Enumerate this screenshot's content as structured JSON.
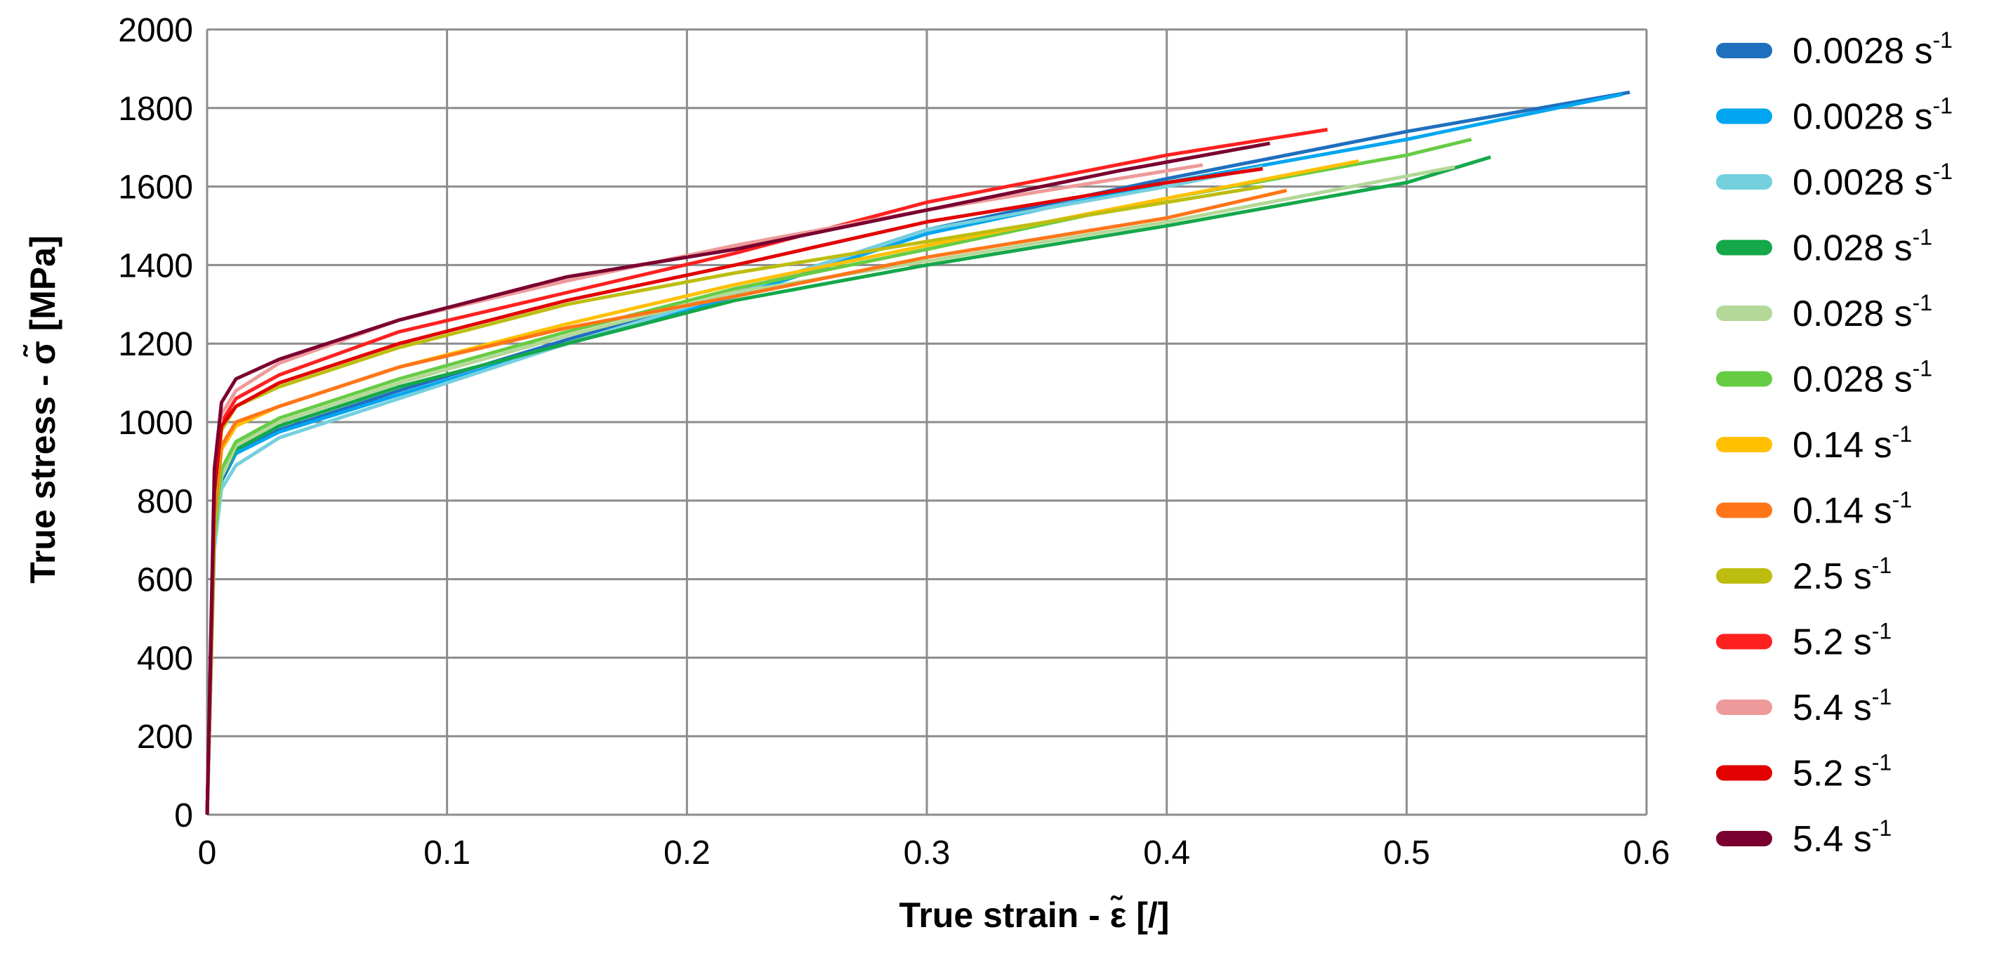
{
  "chart_data": {
    "type": "line",
    "xlabel": "True strain - ε̃ [/]",
    "ylabel": "True stress - σ̃ [MPa]",
    "xlim": [
      0,
      0.6
    ],
    "ylim": [
      0,
      2000
    ],
    "x_ticks": [
      "0",
      "0.1",
      "0.2",
      "0.3",
      "0.4",
      "0.5",
      "0.6"
    ],
    "y_ticks": [
      "0",
      "200",
      "400",
      "600",
      "800",
      "1000",
      "1200",
      "1400",
      "1600",
      "1800",
      "2000"
    ],
    "grid": true,
    "legend_position": "right",
    "legend_unit": "s",
    "legend_exponent": "-1",
    "series": [
      {
        "name": "0.0028",
        "color": "#1f6fbf",
        "points": [
          [
            0,
            0
          ],
          [
            0.003,
            700
          ],
          [
            0.006,
            850
          ],
          [
            0.012,
            920
          ],
          [
            0.03,
            980
          ],
          [
            0.08,
            1080
          ],
          [
            0.15,
            1210
          ],
          [
            0.22,
            1330
          ],
          [
            0.3,
            1490
          ],
          [
            0.4,
            1620
          ],
          [
            0.5,
            1740
          ],
          [
            0.593,
            1840
          ]
        ]
      },
      {
        "name": "0.0028",
        "color": "#00a6ef",
        "points": [
          [
            0,
            0
          ],
          [
            0.003,
            700
          ],
          [
            0.006,
            860
          ],
          [
            0.012,
            920
          ],
          [
            0.03,
            975
          ],
          [
            0.08,
            1070
          ],
          [
            0.15,
            1200
          ],
          [
            0.22,
            1320
          ],
          [
            0.3,
            1480
          ],
          [
            0.4,
            1610
          ],
          [
            0.5,
            1720
          ],
          [
            0.59,
            1835
          ]
        ]
      },
      {
        "name": "0.0028",
        "color": "#75d0de",
        "points": [
          [
            0,
            0
          ],
          [
            0.003,
            680
          ],
          [
            0.006,
            830
          ],
          [
            0.012,
            890
          ],
          [
            0.03,
            960
          ],
          [
            0.08,
            1060
          ],
          [
            0.15,
            1200
          ],
          [
            0.22,
            1330
          ],
          [
            0.3,
            1490
          ],
          [
            0.4,
            1600
          ],
          [
            0.44,
            1650
          ]
        ]
      },
      {
        "name": "0.028",
        "color": "#14a84a",
        "points": [
          [
            0,
            0
          ],
          [
            0.003,
            700
          ],
          [
            0.006,
            860
          ],
          [
            0.012,
            930
          ],
          [
            0.03,
            990
          ],
          [
            0.08,
            1090
          ],
          [
            0.15,
            1200
          ],
          [
            0.22,
            1310
          ],
          [
            0.3,
            1400
          ],
          [
            0.4,
            1500
          ],
          [
            0.5,
            1610
          ],
          [
            0.535,
            1675
          ]
        ]
      },
      {
        "name": "0.028",
        "color": "#b3d898",
        "points": [
          [
            0,
            0
          ],
          [
            0.003,
            700
          ],
          [
            0.006,
            860
          ],
          [
            0.012,
            940
          ],
          [
            0.03,
            1000
          ],
          [
            0.08,
            1100
          ],
          [
            0.15,
            1220
          ],
          [
            0.22,
            1330
          ],
          [
            0.3,
            1410
          ],
          [
            0.4,
            1510
          ],
          [
            0.52,
            1650
          ]
        ]
      },
      {
        "name": "0.028",
        "color": "#66cc44",
        "points": [
          [
            0,
            0
          ],
          [
            0.003,
            710
          ],
          [
            0.006,
            880
          ],
          [
            0.012,
            950
          ],
          [
            0.03,
            1010
          ],
          [
            0.08,
            1110
          ],
          [
            0.15,
            1230
          ],
          [
            0.22,
            1340
          ],
          [
            0.3,
            1440
          ],
          [
            0.4,
            1570
          ],
          [
            0.5,
            1680
          ],
          [
            0.527,
            1720
          ]
        ]
      },
      {
        "name": "0.14",
        "color": "#ffc000",
        "points": [
          [
            0,
            0
          ],
          [
            0.003,
            750
          ],
          [
            0.006,
            930
          ],
          [
            0.012,
            990
          ],
          [
            0.03,
            1040
          ],
          [
            0.08,
            1140
          ],
          [
            0.15,
            1250
          ],
          [
            0.22,
            1350
          ],
          [
            0.3,
            1450
          ],
          [
            0.4,
            1570
          ],
          [
            0.48,
            1665
          ]
        ]
      },
      {
        "name": "0.14",
        "color": "#ff7518",
        "points": [
          [
            0,
            0
          ],
          [
            0.003,
            760
          ],
          [
            0.006,
            940
          ],
          [
            0.012,
            1000
          ],
          [
            0.03,
            1040
          ],
          [
            0.08,
            1140
          ],
          [
            0.15,
            1240
          ],
          [
            0.22,
            1320
          ],
          [
            0.3,
            1420
          ],
          [
            0.4,
            1520
          ],
          [
            0.45,
            1590
          ]
        ]
      },
      {
        "name": "2.5",
        "color": "#bdbd10",
        "points": [
          [
            0,
            0
          ],
          [
            0.003,
            800
          ],
          [
            0.006,
            980
          ],
          [
            0.012,
            1040
          ],
          [
            0.03,
            1090
          ],
          [
            0.08,
            1190
          ],
          [
            0.15,
            1300
          ],
          [
            0.22,
            1380
          ],
          [
            0.3,
            1460
          ],
          [
            0.4,
            1560
          ],
          [
            0.44,
            1600
          ]
        ]
      },
      {
        "name": "5.2",
        "color": "#ff2020",
        "points": [
          [
            0,
            0
          ],
          [
            0.003,
            850
          ],
          [
            0.006,
            1000
          ],
          [
            0.012,
            1060
          ],
          [
            0.03,
            1120
          ],
          [
            0.08,
            1230
          ],
          [
            0.15,
            1330
          ],
          [
            0.22,
            1430
          ],
          [
            0.3,
            1560
          ],
          [
            0.4,
            1680
          ],
          [
            0.467,
            1745
          ]
        ]
      },
      {
        "name": "5.4",
        "color": "#ee9a9a",
        "points": [
          [
            0,
            0
          ],
          [
            0.003,
            860
          ],
          [
            0.006,
            1020
          ],
          [
            0.012,
            1080
          ],
          [
            0.03,
            1150
          ],
          [
            0.08,
            1260
          ],
          [
            0.15,
            1360
          ],
          [
            0.22,
            1450
          ],
          [
            0.3,
            1540
          ],
          [
            0.38,
            1620
          ],
          [
            0.415,
            1655
          ]
        ]
      },
      {
        "name": "5.2",
        "color": "#e20000",
        "points": [
          [
            0,
            0
          ],
          [
            0.003,
            820
          ],
          [
            0.006,
            990
          ],
          [
            0.012,
            1040
          ],
          [
            0.03,
            1100
          ],
          [
            0.08,
            1200
          ],
          [
            0.15,
            1310
          ],
          [
            0.22,
            1400
          ],
          [
            0.3,
            1510
          ],
          [
            0.4,
            1610
          ],
          [
            0.44,
            1645
          ]
        ]
      },
      {
        "name": "5.4",
        "color": "#7a0030",
        "points": [
          [
            0,
            0
          ],
          [
            0.003,
            880
          ],
          [
            0.006,
            1050
          ],
          [
            0.012,
            1110
          ],
          [
            0.03,
            1160
          ],
          [
            0.08,
            1260
          ],
          [
            0.15,
            1370
          ],
          [
            0.22,
            1440
          ],
          [
            0.3,
            1540
          ],
          [
            0.38,
            1640
          ],
          [
            0.443,
            1710
          ]
        ]
      }
    ]
  }
}
